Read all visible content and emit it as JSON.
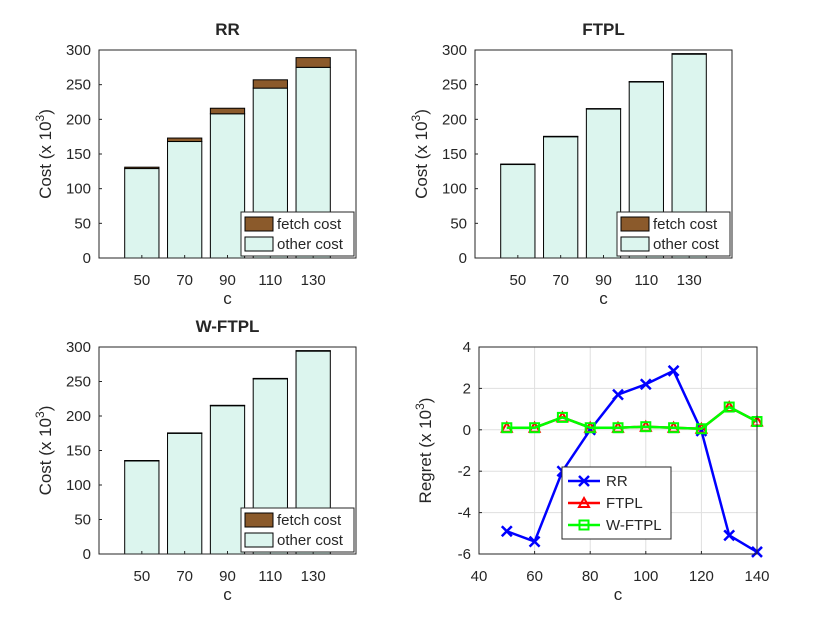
{
  "chart_data": [
    {
      "type": "bar",
      "stacked": true,
      "title": "RR",
      "xlabel": "c",
      "ylabel": "Cost (x 10",
      "ylabel_exp": "3",
      "ylabel_close": ")",
      "categories": [
        "50",
        "70",
        "90",
        "110",
        "130"
      ],
      "ylim": [
        0,
        300
      ],
      "yticks": [
        "0",
        "50",
        "100",
        "150",
        "200",
        "250",
        "300"
      ],
      "grid": false,
      "legend_position": "bottom-right",
      "series": [
        {
          "name": "other cost",
          "values": [
            129,
            168,
            208,
            245,
            275
          ],
          "color": "#dcf5ee"
        },
        {
          "name": "fetch cost",
          "values": [
            2,
            5,
            8,
            12,
            14
          ],
          "color": "#8b5a2b"
        }
      ]
    },
    {
      "type": "bar",
      "stacked": true,
      "title": "FTPL",
      "xlabel": "c",
      "ylabel": "Cost (x 10",
      "ylabel_exp": "3",
      "ylabel_close": ")",
      "categories": [
        "50",
        "70",
        "90",
        "110",
        "130"
      ],
      "ylim": [
        0,
        300
      ],
      "yticks": [
        "0",
        "50",
        "100",
        "150",
        "200",
        "250",
        "300"
      ],
      "grid": false,
      "legend_position": "bottom-right",
      "series": [
        {
          "name": "other cost",
          "values": [
            135,
            175,
            215,
            254,
            294
          ],
          "color": "#dcf5ee"
        },
        {
          "name": "fetch cost",
          "values": [
            0.5,
            0.5,
            0.5,
            0.5,
            0.8
          ],
          "color": "#8b5a2b"
        }
      ]
    },
    {
      "type": "bar",
      "stacked": true,
      "title": "W-FTPL",
      "xlabel": "c",
      "ylabel": "Cost (x 10",
      "ylabel_exp": "3",
      "ylabel_close": ")",
      "categories": [
        "50",
        "70",
        "90",
        "110",
        "130"
      ],
      "ylim": [
        0,
        300
      ],
      "yticks": [
        "0",
        "50",
        "100",
        "150",
        "200",
        "250",
        "300"
      ],
      "grid": false,
      "legend_position": "bottom-right",
      "series": [
        {
          "name": "other cost",
          "values": [
            135,
            175,
            215,
            254,
            294
          ],
          "color": "#dcf5ee"
        },
        {
          "name": "fetch cost",
          "values": [
            0.5,
            0.5,
            0.5,
            0.5,
            0.8
          ],
          "color": "#8b5a2b"
        }
      ]
    },
    {
      "type": "line",
      "title": "",
      "xlabel": "c",
      "ylabel": "Regret (x 10",
      "ylabel_exp": "3",
      "ylabel_close": ")",
      "x": [
        50,
        60,
        70,
        80,
        90,
        100,
        110,
        120,
        130,
        140
      ],
      "xlim": [
        40,
        140
      ],
      "xticks": [
        "40",
        "60",
        "80",
        "100",
        "120",
        "140"
      ],
      "ylim": [
        -6,
        4
      ],
      "yticks": [
        "-6",
        "-4",
        "-2",
        "0",
        "2",
        "4"
      ],
      "grid": true,
      "legend_position": "bottom-center",
      "series": [
        {
          "name": "RR",
          "values": [
            -4.9,
            -5.4,
            -2.0,
            0.0,
            1.7,
            2.2,
            2.85,
            -0.05,
            -5.1,
            -5.9
          ],
          "color": "#0000ff",
          "marker": "x"
        },
        {
          "name": "FTPL",
          "values": [
            0.1,
            0.1,
            0.6,
            0.1,
            0.1,
            0.15,
            0.1,
            0.05,
            1.1,
            0.4
          ],
          "color": "#ff0000",
          "marker": "triangle"
        },
        {
          "name": "W-FTPL",
          "values": [
            0.1,
            0.1,
            0.6,
            0.1,
            0.1,
            0.15,
            0.1,
            0.05,
            1.1,
            0.4
          ],
          "color": "#00ff00",
          "marker": "square"
        }
      ]
    }
  ]
}
